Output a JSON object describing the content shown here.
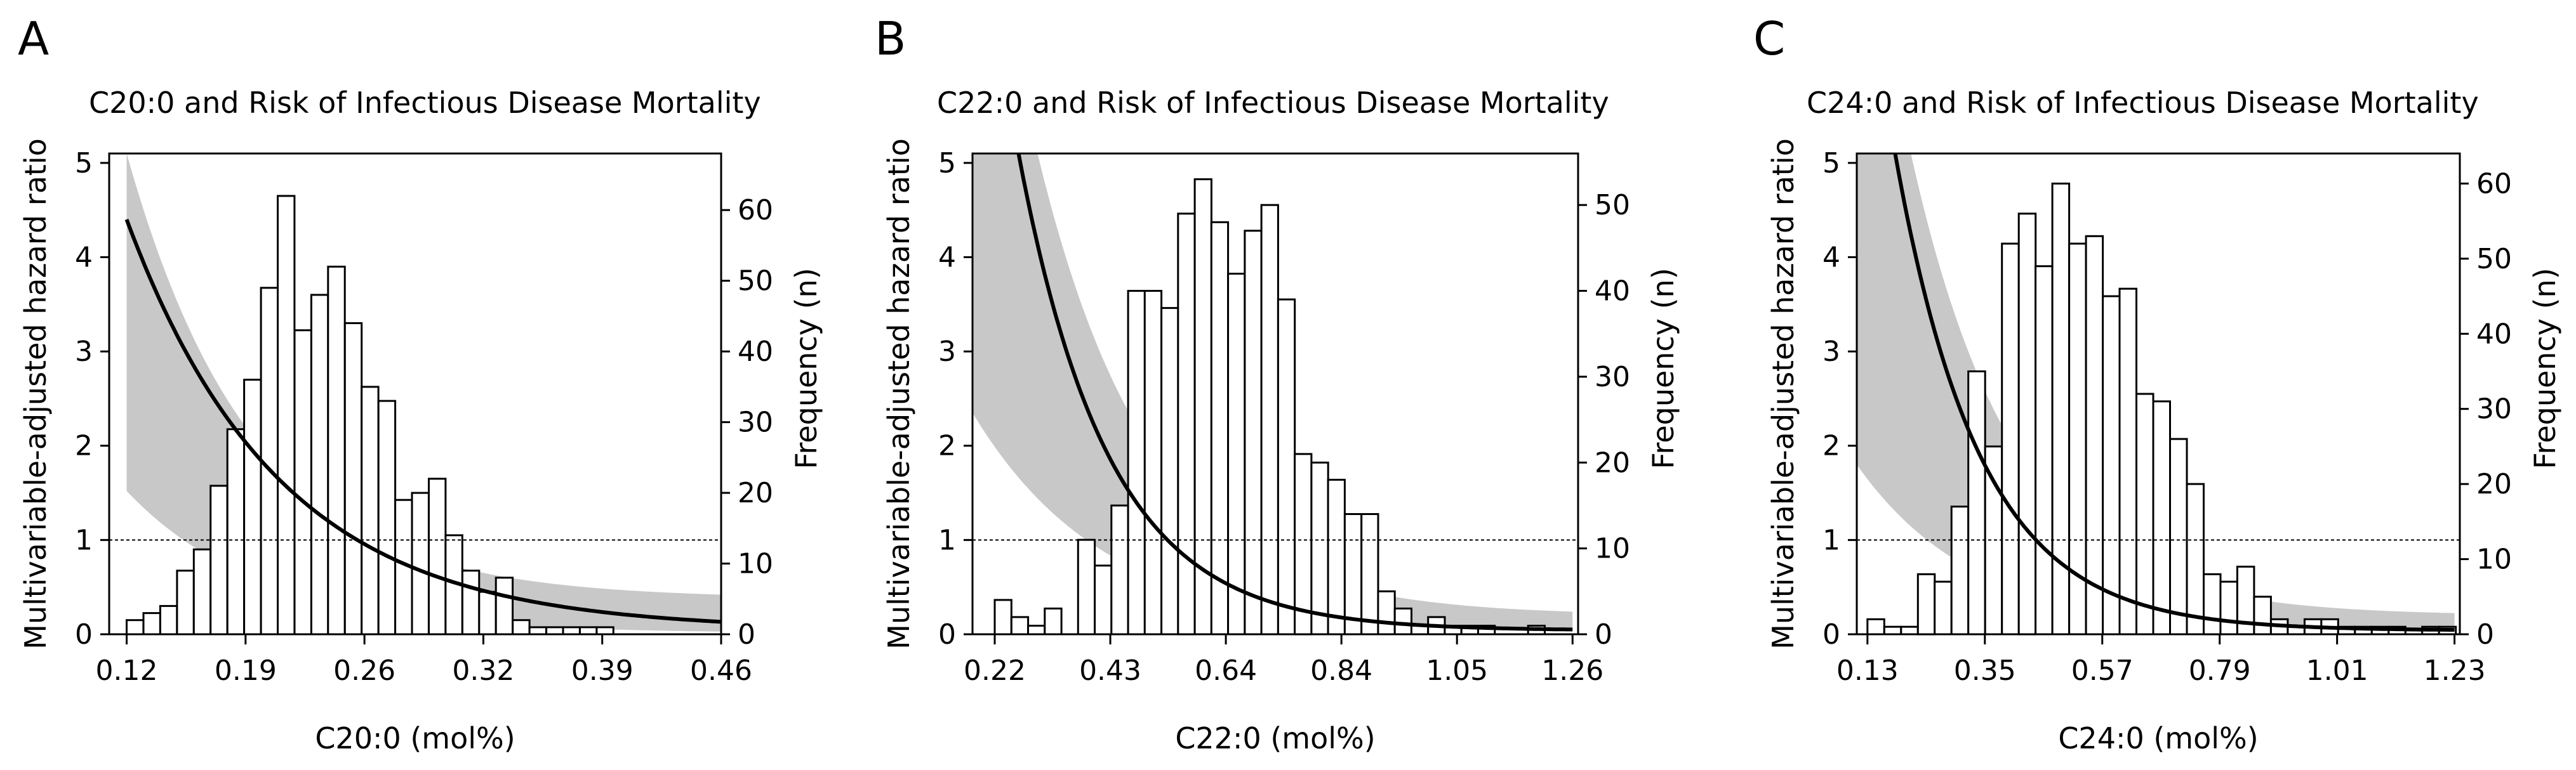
{
  "chart_data": [
    {
      "panel": "A",
      "type": "histogram+line",
      "title": "C20:0 and Risk of Infectious Disease Mortality",
      "xlabel": "C20:0 (mol%)",
      "ylabel": "Multivariable-adjusted hazard ratio",
      "y2label": "Frequency (n)",
      "x_ticks": [
        "0.12",
        "0.19",
        "0.26",
        "0.32",
        "0.39",
        "0.46"
      ],
      "xlim": [
        0.11,
        0.46
      ],
      "ylim": [
        0,
        5.1
      ],
      "y_ticks": [
        "0",
        "1",
        "2",
        "3",
        "4",
        "5"
      ],
      "y2lim": [
        0,
        68
      ],
      "y2_ticks": [
        "0",
        "10",
        "20",
        "30",
        "40",
        "50",
        "60"
      ],
      "reference_hr": 1,
      "hist_start": 0.12,
      "hist_bin": 0.0096,
      "hist_counts": [
        2,
        3,
        4,
        9,
        12,
        21,
        29,
        36,
        49,
        62,
        43,
        48,
        52,
        44,
        35,
        33,
        19,
        20,
        22,
        14,
        9,
        6,
        8,
        2,
        1,
        1,
        1,
        1,
        1,
        0,
        0,
        0,
        0,
        0,
        0
      ],
      "hr_curve": {
        "x0": 0.12,
        "x1": 0.46,
        "y0": 4.4,
        "k": 11.5,
        "floor": 0.045
      },
      "ci_upper_start": 5.1,
      "ci_upper_decay": 14.0,
      "ci_upper_floor": 0.38,
      "ci_lower_start": 1.52,
      "ci_lower_decay": 13.0,
      "ci_lower_floor": 0.01
    },
    {
      "panel": "B",
      "type": "histogram+line",
      "title": "C22:0 and Risk of Infectious Disease Mortality",
      "xlabel": "C22:0 (mol%)",
      "ylabel": "Multivariable-adjusted hazard ratio",
      "y2label": "Frequency (n)",
      "x_ticks": [
        "0.22",
        "0.43",
        "0.64",
        "0.84",
        "1.05",
        "1.26"
      ],
      "xlim": [
        0.18,
        1.27
      ],
      "ylim": [
        0,
        5.1
      ],
      "y_ticks": [
        "0",
        "1",
        "2",
        "3",
        "4",
        "5"
      ],
      "y2lim": [
        0,
        56
      ],
      "y2_ticks": [
        "0",
        "10",
        "20",
        "30",
        "40",
        "50"
      ],
      "reference_hr": 1,
      "hist_start": 0.22,
      "hist_bin": 0.03,
      "hist_counts": [
        4,
        2,
        1,
        3,
        0,
        11,
        8,
        15,
        40,
        40,
        38,
        49,
        53,
        48,
        42,
        47,
        50,
        39,
        21,
        20,
        18,
        14,
        14,
        5,
        3,
        1,
        2,
        1,
        1,
        1,
        0,
        0,
        1,
        0,
        0
      ],
      "hr_curve": {
        "x0": 0.18,
        "x1": 1.26,
        "y0": 8.5,
        "k": 6.2,
        "floor": 0.04
      },
      "ci_upper_start": 9.0,
      "ci_upper_decay": 5.0,
      "ci_upper_floor": 0.2,
      "ci_lower_start": 2.35,
      "ci_lower_decay": 4.2,
      "ci_lower_floor": 0.01
    },
    {
      "panel": "C",
      "type": "histogram+line",
      "title": "C24:0 and Risk of Infectious Disease Mortality",
      "xlabel": "C24:0 (mol%)",
      "ylabel": "Multivariable-adjusted hazard ratio",
      "y2label": "Frequency (n)",
      "x_ticks": [
        "0.13",
        "0.35",
        "0.57",
        "0.79",
        "1.01",
        "1.23"
      ],
      "xlim": [
        0.11,
        1.24
      ],
      "ylim": [
        0,
        5.1
      ],
      "y_ticks": [
        "0",
        "1",
        "2",
        "3",
        "4",
        "5"
      ],
      "y2lim": [
        0,
        64
      ],
      "y2_ticks": [
        "0",
        "10",
        "20",
        "30",
        "40",
        "50",
        "60"
      ],
      "reference_hr": 1,
      "hist_start": 0.13,
      "hist_bin": 0.0315,
      "hist_counts": [
        2,
        1,
        1,
        8,
        7,
        17,
        35,
        25,
        52,
        56,
        49,
        60,
        52,
        53,
        45,
        46,
        32,
        31,
        26,
        20,
        8,
        7,
        9,
        5,
        2,
        1,
        2,
        2,
        1,
        1,
        1,
        1,
        0,
        1,
        1
      ],
      "hr_curve": {
        "x0": 0.11,
        "x1": 1.23,
        "y0": 8.0,
        "k": 6.3,
        "floor": 0.04
      },
      "ci_upper_start": 8.5,
      "ci_upper_decay": 5.2,
      "ci_upper_floor": 0.2,
      "ci_lower_start": 1.8,
      "ci_lower_decay": 4.5,
      "ci_lower_floor": 0.01
    }
  ]
}
